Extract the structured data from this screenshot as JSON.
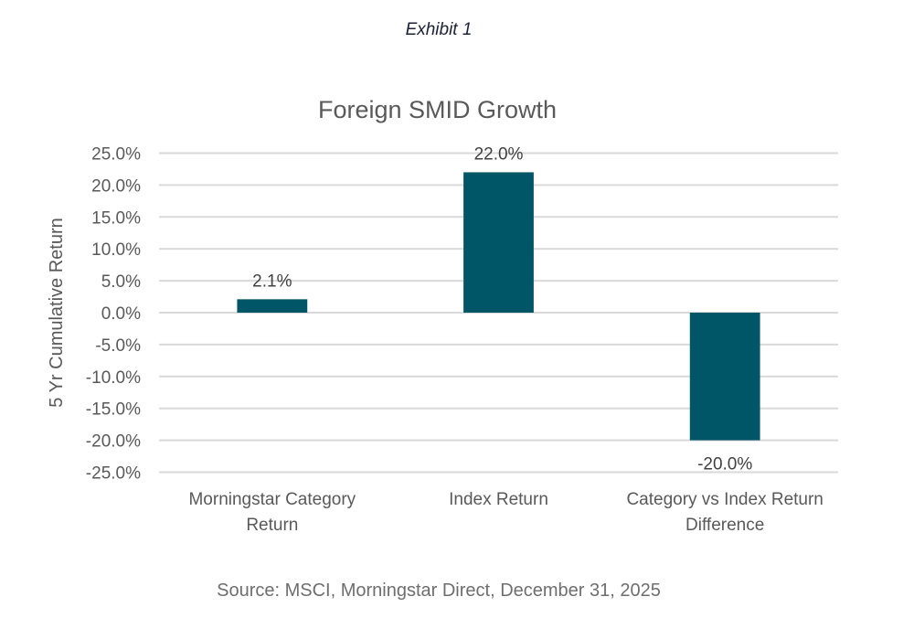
{
  "header": {
    "exhibit_label": "Exhibit 1"
  },
  "footer": {
    "source": "Source: MSCI, Morningstar Direct, December 31, 2025"
  },
  "colors": {
    "bar": "#005566",
    "grid": "#d9d9d9",
    "text": "#595959"
  },
  "chart_data": {
    "type": "bar",
    "title": "Foreign SMID Growth",
    "xlabel": "",
    "ylabel": "5 Yr Cumulative Return",
    "ylim": [
      -25,
      25
    ],
    "ytick_step": 5,
    "yticks": [
      "25.0%",
      "20.0%",
      "15.0%",
      "10.0%",
      "5.0%",
      "0.0%",
      "-5.0%",
      "-10.0%",
      "-15.0%",
      "-20.0%",
      "-25.0%"
    ],
    "grid": true,
    "legend": "none",
    "categories": [
      [
        "Morningstar Category",
        "Return"
      ],
      [
        "Index Return"
      ],
      [
        "Category vs Index Return",
        "Difference"
      ]
    ],
    "values": [
      2.1,
      22.0,
      -20.0
    ],
    "data_labels": [
      "2.1%",
      "22.0%",
      "-20.0%"
    ]
  }
}
